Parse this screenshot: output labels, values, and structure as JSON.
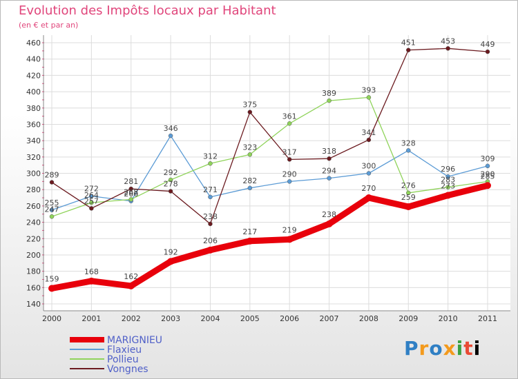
{
  "title": "Evolution des Impôts locaux par Habitant",
  "subtitle": "(en € et par an)",
  "logo_text": "Proxiti",
  "chart_data": {
    "type": "line",
    "x": [
      "2000",
      "2001",
      "2002",
      "2003",
      "2004",
      "2005",
      "2006",
      "2007",
      "2008",
      "2009",
      "2010",
      "2011"
    ],
    "ylim": [
      140,
      460
    ],
    "yticks": [
      140,
      160,
      180,
      200,
      220,
      240,
      260,
      280,
      300,
      320,
      340,
      360,
      380,
      400,
      420,
      440,
      460
    ],
    "grid": true,
    "legend_position": "bottom-left",
    "series": [
      {
        "name": "MARIGNIEU",
        "color": "#e8000b",
        "thick": true,
        "values": [
          159,
          168,
          162,
          192,
          206,
          217,
          219,
          238,
          270,
          259,
          273,
          285
        ]
      },
      {
        "name": "Flaxieu",
        "color": "#5b9bd5",
        "thick": false,
        "values": [
          255,
          272,
          266,
          346,
          271,
          282,
          290,
          294,
          300,
          328,
          296,
          309
        ]
      },
      {
        "name": "Pollieu",
        "color": "#8fd35a",
        "thick": false,
        "values": [
          247,
          264,
          268,
          292,
          312,
          323,
          361,
          389,
          393,
          276,
          283,
          290
        ]
      },
      {
        "name": "Vongnes",
        "color": "#6b1a1f",
        "thick": false,
        "values": [
          289,
          257,
          281,
          278,
          238,
          375,
          317,
          318,
          341,
          451,
          453,
          449
        ]
      }
    ]
  }
}
